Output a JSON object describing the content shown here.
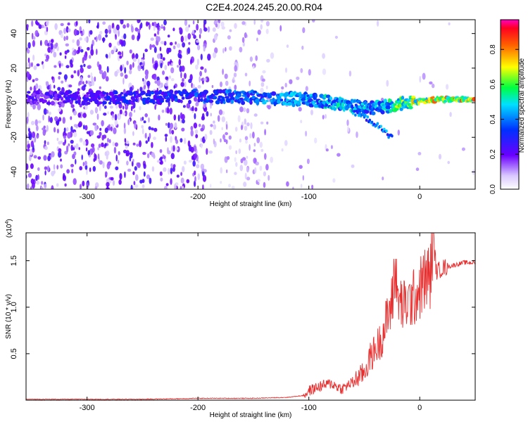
{
  "title": "C2E4.2024.245.20.00.R04",
  "top_panel": {
    "xlabel": "Height of straight line (km)",
    "ylabel": "Frequency (Hz)",
    "colorbar_label": "Normalized spectral amplitude",
    "colorbar_ticks": [
      "0.0",
      "0.2",
      "0.4",
      "0.6",
      "0.8"
    ],
    "xticks": [
      "-300",
      "-200",
      "-100",
      "0"
    ],
    "yticks": [
      "40",
      "20",
      "0",
      "-20",
      "-40"
    ]
  },
  "bottom_panel": {
    "xlabel": "Height of straight line (km)",
    "ylabel": "SNR (10 * v/v)",
    "multiplier_label": "(x10",
    "multiplier_exp": "4",
    "multiplier_close": ")",
    "xticks": [
      "-300",
      "-200",
      "-100",
      "0"
    ],
    "yticks": [
      "1.5",
      "1.0",
      "0.5"
    ]
  },
  "chart_data": [
    {
      "type": "heatmap",
      "title": "C2E4.2024.245.20.00.R04",
      "xlabel": "Height of straight line (km)",
      "ylabel": "Frequency (Hz)",
      "xlim": [
        -355,
        50
      ],
      "ylim": [
        -50,
        48
      ],
      "x_ticks": [
        -300,
        -200,
        -100,
        0
      ],
      "y_ticks": [
        40,
        20,
        0,
        -20,
        -40
      ],
      "colorbar": {
        "label": "Normalized spectral amplitude",
        "range": [
          0,
          0.97
        ],
        "ticks": [
          0.0,
          0.2,
          0.4,
          0.6,
          0.8
        ],
        "colormap": "rainbow"
      },
      "ridge": {
        "x": [
          -355,
          -300,
          -250,
          -200,
          -150,
          -100,
          -80,
          -60,
          -40,
          -30,
          -20,
          -10,
          0,
          20,
          50
        ],
        "frequency": [
          3,
          3,
          3,
          4,
          3,
          2,
          0,
          -2,
          -3,
          -2,
          -1,
          0,
          1,
          2,
          2
        ],
        "amplitude": [
          0.25,
          0.3,
          0.35,
          0.4,
          0.45,
          0.5,
          0.55,
          0.55,
          0.5,
          0.55,
          0.7,
          0.75,
          0.8,
          0.85,
          0.85
        ]
      },
      "secondary_branch": {
        "x": [
          -60,
          -45,
          -35,
          -25
        ],
        "frequency": [
          -5,
          -10,
          -15,
          -20
        ]
      }
    },
    {
      "type": "line",
      "xlabel": "Height of straight line (km)",
      "ylabel": "SNR (10 * v/v)",
      "xlim": [
        -355,
        50
      ],
      "ylim": [
        0,
        1.8
      ],
      "y_multiplier": "x10^4",
      "x_ticks": [
        -300,
        -200,
        -100,
        0
      ],
      "y_ticks": [
        0.5,
        1.0,
        1.5
      ],
      "color": "#e83030",
      "series": [
        {
          "x": [
            -355,
            -300,
            -250,
            -200,
            -150,
            -120,
            -105,
            -100,
            -90,
            -80,
            -70,
            -60,
            -50,
            -45,
            -40,
            -35,
            -30,
            -25,
            -22,
            -20,
            -15,
            -10,
            -5,
            0,
            5,
            10,
            12,
            15,
            20,
            30,
            40,
            50
          ],
          "y": [
            0.01,
            0.01,
            0.01,
            0.02,
            0.02,
            0.03,
            0.05,
            0.1,
            0.15,
            0.18,
            0.12,
            0.2,
            0.3,
            0.45,
            0.55,
            0.65,
            0.85,
            1.05,
            1.3,
            1.1,
            1.0,
            1.05,
            1.1,
            1.2,
            1.3,
            1.35,
            1.8,
            1.38,
            1.42,
            1.45,
            1.48,
            1.48
          ]
        }
      ]
    }
  ]
}
